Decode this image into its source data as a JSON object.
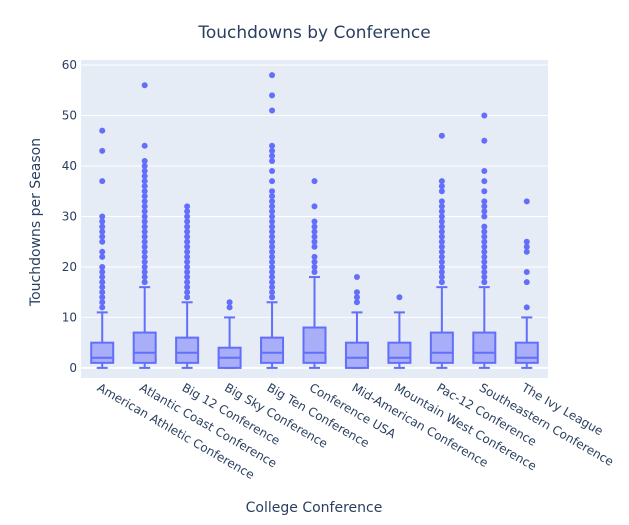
{
  "chart_data": {
    "type": "box",
    "title": "Touchdowns by Conference",
    "xlabel": "College Conference",
    "ylabel": "Touchdowns per Season",
    "ylim": [
      -2,
      61
    ],
    "yticks": [
      0,
      10,
      20,
      30,
      40,
      50,
      60
    ],
    "grid": true,
    "colors": {
      "plot_bg": "#e5ecf6",
      "box_line": "#636efa",
      "box_fill": "#a8aef7",
      "grid": "#ffffff",
      "text": "#2a3f5f"
    },
    "categories": [
      "American Athletic Conference",
      "Atlantic Coast Conference",
      "Big 12 Conference",
      "Big Sky Conference",
      "Big Ten Conference",
      "Conference USA",
      "Mid-American Conference",
      "Mountain West Conference",
      "Pac-12 Conference",
      "Southeastern Conference",
      "The Ivy League"
    ],
    "boxes": [
      {
        "min": 0,
        "q1": 1,
        "median": 2,
        "q3": 5,
        "max": 11,
        "outliers": [
          12,
          13,
          14,
          15,
          16,
          17,
          18,
          19,
          20,
          22,
          23,
          25,
          26,
          27,
          28,
          29,
          30,
          37,
          43,
          47
        ]
      },
      {
        "min": 0,
        "q1": 1,
        "median": 3,
        "q3": 7,
        "max": 16,
        "outliers": [
          17,
          18,
          19,
          20,
          21,
          22,
          23,
          24,
          25,
          26,
          27,
          28,
          29,
          30,
          31,
          32,
          33,
          34,
          35,
          36,
          37,
          38,
          39,
          40,
          41,
          44,
          56
        ]
      },
      {
        "min": 0,
        "q1": 1,
        "median": 3,
        "q3": 6,
        "max": 13,
        "outliers": [
          14,
          15,
          16,
          17,
          18,
          19,
          20,
          21,
          22,
          23,
          24,
          25,
          26,
          27,
          28,
          29,
          30,
          31,
          32
        ]
      },
      {
        "min": 0,
        "q1": 0,
        "median": 2,
        "q3": 4,
        "max": 10,
        "outliers": [
          12,
          13
        ]
      },
      {
        "min": 0,
        "q1": 1,
        "median": 3,
        "q3": 6,
        "max": 13,
        "outliers": [
          14,
          15,
          16,
          17,
          18,
          19,
          20,
          21,
          22,
          23,
          24,
          25,
          26,
          27,
          28,
          29,
          30,
          31,
          32,
          33,
          34,
          35,
          37,
          39,
          41,
          42,
          43,
          44,
          51,
          54,
          58
        ]
      },
      {
        "min": 0,
        "q1": 1,
        "median": 3,
        "q3": 8,
        "max": 18,
        "outliers": [
          19,
          20,
          21,
          22,
          24,
          25,
          26,
          27,
          28,
          29,
          32,
          37
        ]
      },
      {
        "min": 0,
        "q1": 0,
        "median": 2,
        "q3": 5,
        "max": 11,
        "outliers": [
          13,
          14,
          15,
          18
        ]
      },
      {
        "min": 0,
        "q1": 1,
        "median": 2,
        "q3": 5,
        "max": 11,
        "outliers": [
          14
        ]
      },
      {
        "min": 0,
        "q1": 1,
        "median": 3,
        "q3": 7,
        "max": 16,
        "outliers": [
          17,
          18,
          19,
          20,
          21,
          22,
          23,
          24,
          25,
          26,
          27,
          28,
          29,
          30,
          31,
          32,
          33,
          35,
          36,
          37,
          46
        ]
      },
      {
        "min": 0,
        "q1": 1,
        "median": 3,
        "q3": 7,
        "max": 16,
        "outliers": [
          17,
          18,
          19,
          20,
          21,
          22,
          23,
          24,
          25,
          26,
          27,
          28,
          30,
          31,
          32,
          33,
          35,
          37,
          39,
          45,
          50
        ]
      },
      {
        "min": 0,
        "q1": 1,
        "median": 2,
        "q3": 5,
        "max": 10,
        "outliers": [
          12,
          17,
          19,
          23,
          24,
          25,
          33
        ]
      }
    ]
  }
}
